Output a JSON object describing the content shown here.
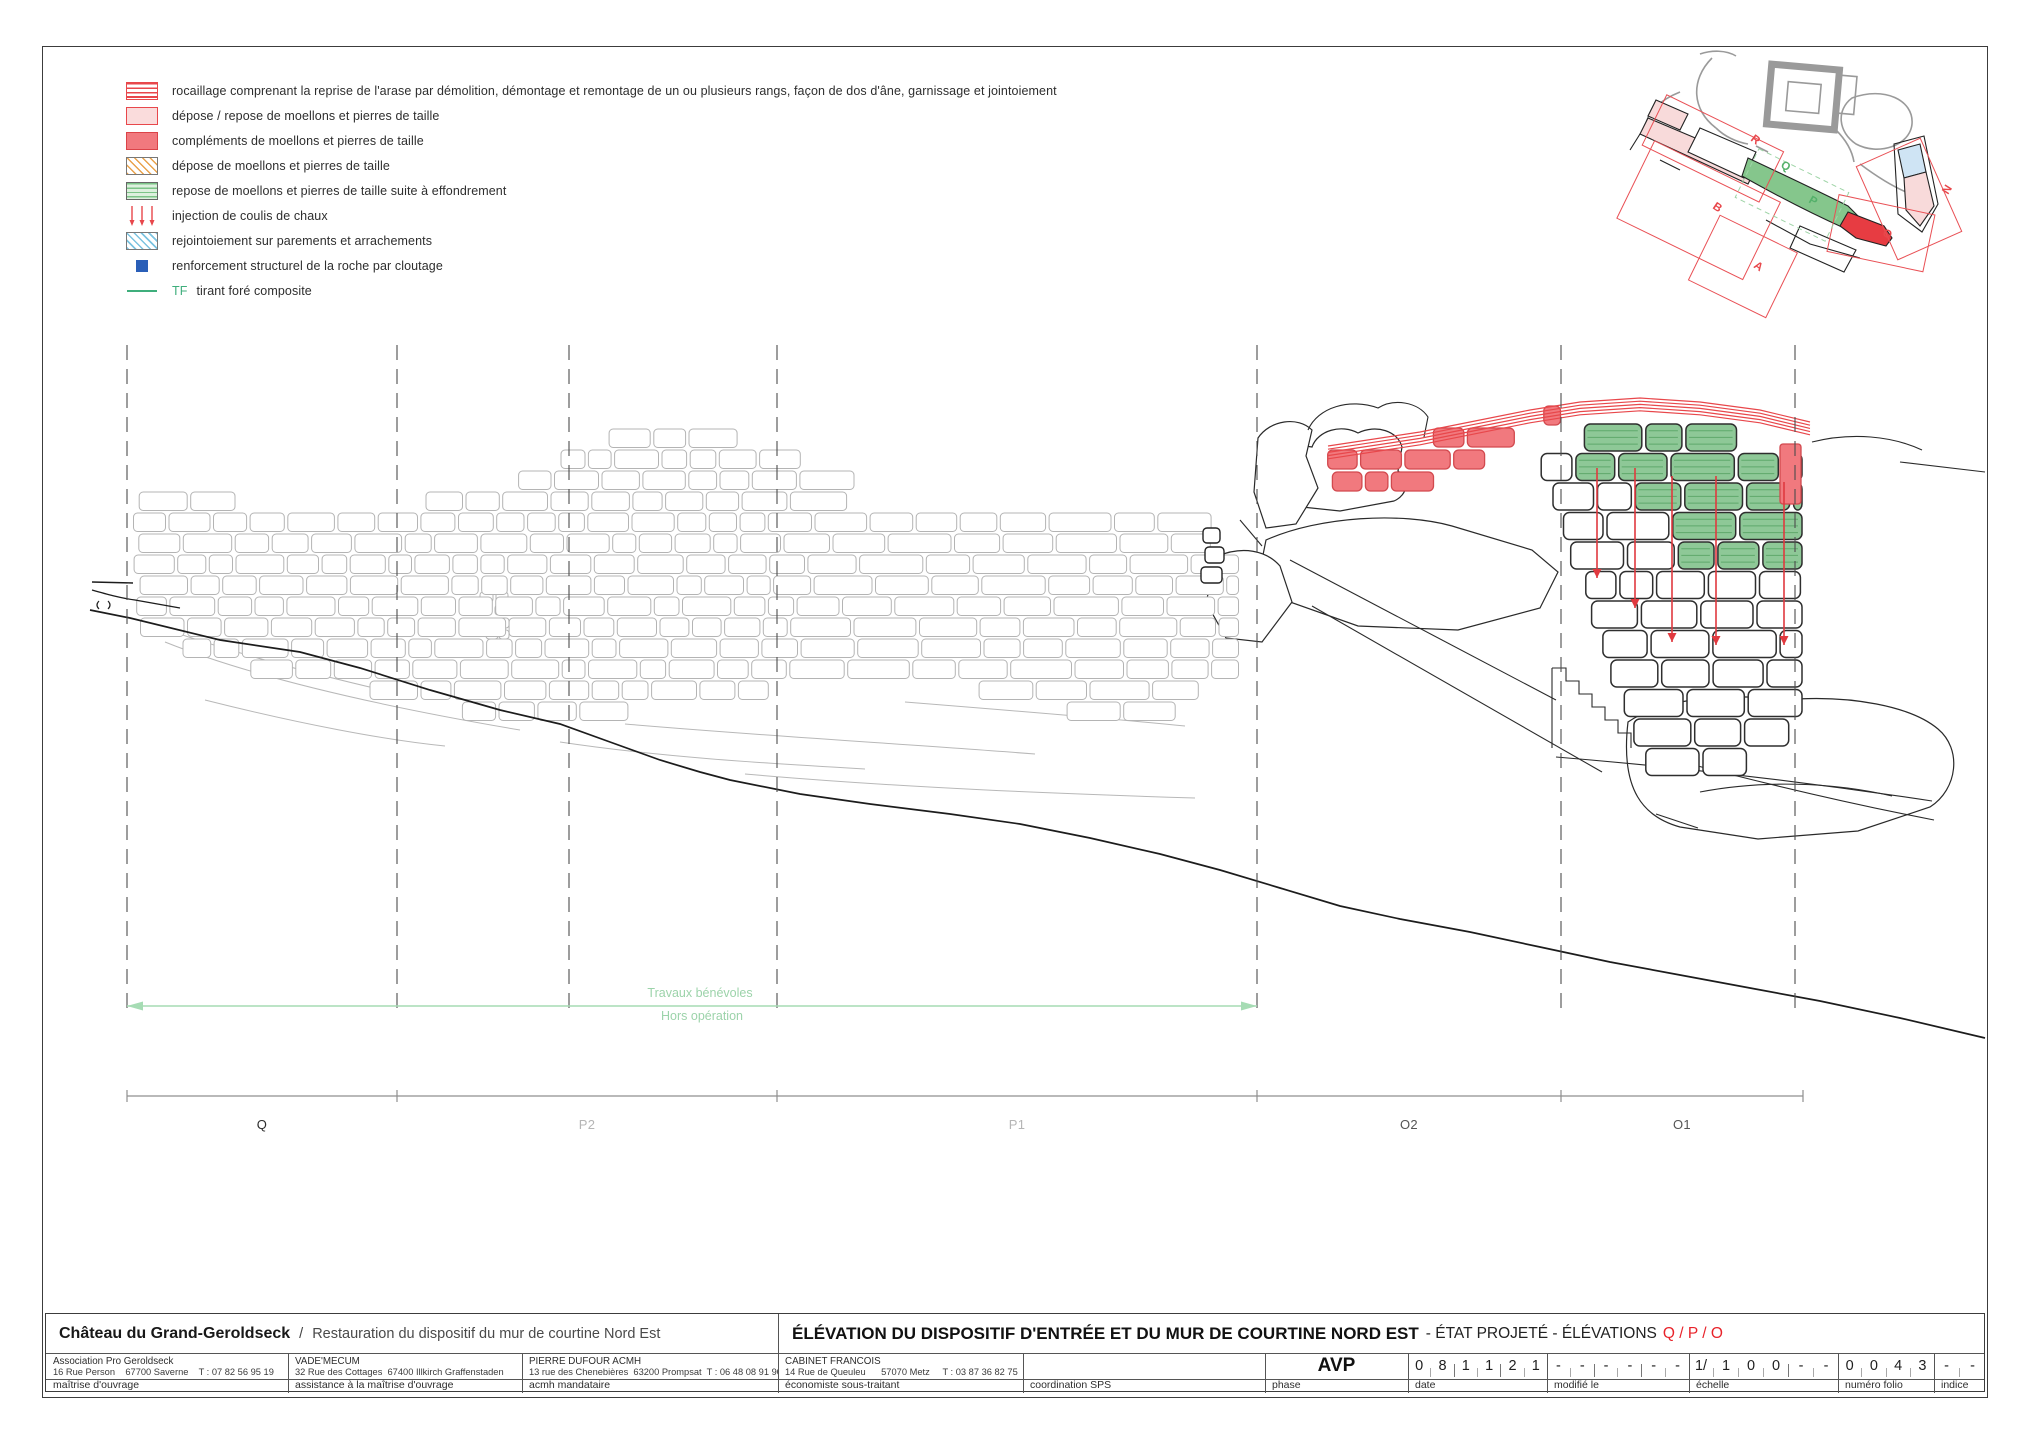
{
  "colors": {
    "accent_red": "#e8474b",
    "masonry_red_fill": "#f1797e",
    "masonry_red_stroke": "#d2494e",
    "masonry_green_fill": "#8ec897",
    "masonry_green_stripe": "#5fa96b",
    "stone_outline_gray": "#b4b4b4",
    "hatch_orange": "#e9a24b",
    "hatch_blue": "#7cc3e0",
    "legend_blue_square": "#2a5fb8",
    "tf_green": "#3fae7c",
    "dimension_green": "#9cd3aa",
    "plan_blue": "#cfe4f4",
    "plan_pink": "#f8dada",
    "title_red": "#e8232a"
  },
  "legend": {
    "items": [
      {
        "name": "rocaillage",
        "label": "rocaillage comprenant la reprise de l'arase par démolition, démontage et remontage de un ou plusieurs rangs, façon de dos d'âne, garnissage et jointoiement"
      },
      {
        "name": "depose-repose",
        "label": "dépose / repose de moellons et pierres de taille"
      },
      {
        "name": "complements",
        "label": "compléments de moellons et pierres de taille"
      },
      {
        "name": "depose",
        "label": "dépose de moellons et pierres de taille"
      },
      {
        "name": "repose-effondrement",
        "label": "repose de moellons et pierres de taille suite à effondrement"
      },
      {
        "name": "injection",
        "label": "injection de coulis de chaux"
      },
      {
        "name": "rejointoiement",
        "label": "rejointoiement sur parements et arrachements"
      },
      {
        "name": "cloutage",
        "label": "renforcement structurel de la roche par cloutage"
      },
      {
        "name": "tirant-fore",
        "prefix": "TF",
        "label": "tirant foré composite"
      }
    ]
  },
  "key_plan": {
    "zones": [
      {
        "label": "R"
      },
      {
        "label": "B"
      },
      {
        "label": "A"
      },
      {
        "label": "O"
      },
      {
        "label": "N"
      },
      {
        "label": "Q"
      },
      {
        "label": "P"
      }
    ]
  },
  "elevation": {
    "sections": [
      {
        "label": "Q"
      },
      {
        "label": "P2"
      },
      {
        "label": "P1"
      },
      {
        "label": "O2"
      },
      {
        "label": "O1"
      }
    ],
    "annotation": {
      "line1": "Travaux bénévoles",
      "line2": "Hors opération"
    }
  },
  "title_block": {
    "project": {
      "name": "Château du Grand-Geroldseck",
      "separator": "/",
      "subtitle": "Restauration du dispositif du mur de courtine Nord Est"
    },
    "drawing_title": {
      "main": "ÉLÉVATION DU DISPOSITIF D'ENTRÉE ET DU MUR DE COURTINE NORD EST",
      "middle": "- ÉTAT PROJETÉ - ÉLÉVATIONS",
      "sections": "Q / P / O"
    },
    "stakeholders": [
      {
        "name": "Association Pro Geroldseck",
        "address": "16 Rue Person    67700 Saverne    T : 07 82 56 95 19",
        "role": "maîtrise d'ouvrage"
      },
      {
        "name": "VADE'MECUM",
        "address": "32 Rue des Cottages  67400 Illkirch Graffenstaden",
        "role": "assistance à la maîtrise d'ouvrage"
      },
      {
        "name": "PIERRE DUFOUR ACMH",
        "address": "13 rue des Chenebières  63200 Prompsat  T : 06 48 08 91 90",
        "role": "acmh mandataire"
      },
      {
        "name": "CABINET FRANCOIS",
        "address": "14 Rue de Queuleu      57070 Metz     T : 03 87 36 82 75",
        "role": "économiste sous-traitant"
      },
      {
        "name": "",
        "address": "",
        "role": "coordination SPS"
      }
    ],
    "phase": {
      "value": "AVP",
      "role": "phase"
    },
    "fields": [
      {
        "role": "date",
        "slots": [
          "0",
          "8",
          "1",
          "1",
          "2",
          "1"
        ]
      },
      {
        "role": "modifié le",
        "slots": [
          "-",
          "-",
          "-",
          "-",
          "-",
          "-"
        ]
      },
      {
        "role": "échelle",
        "slots": [
          "1/",
          "1",
          "0",
          "0",
          "-",
          "-"
        ]
      },
      {
        "role": "numéro folio",
        "slots": [
          "0",
          "0",
          "4",
          "3"
        ]
      },
      {
        "role": "indice",
        "slots": [
          "-",
          "-"
        ]
      }
    ]
  }
}
